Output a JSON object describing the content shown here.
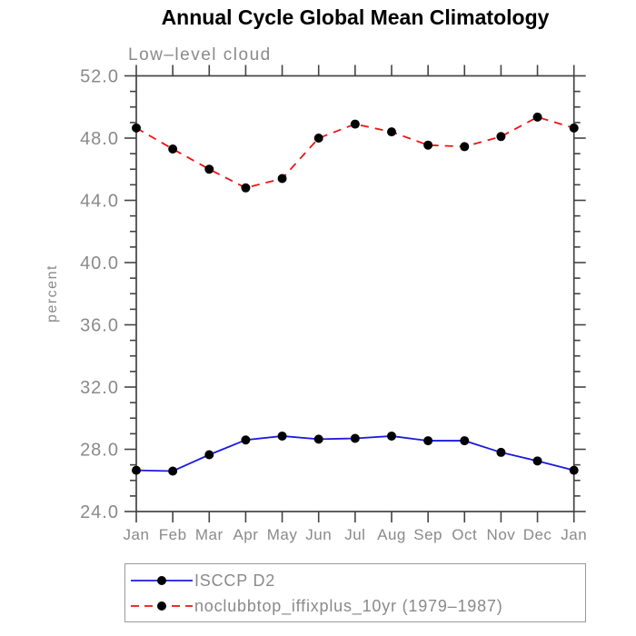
{
  "title": "Annual Cycle Global Mean Climatology",
  "subtitle": "Low–level cloud",
  "chart_data": {
    "type": "line",
    "title": "Annual Cycle Global Mean Climatology",
    "subtitle": "Low–level cloud",
    "ylabel": "percent",
    "xlabel": "",
    "ylim": [
      24.0,
      52.0
    ],
    "ytick_major": 4.0,
    "ytick_minor": 1.0,
    "grid": false,
    "legend_position": "bottom",
    "marker": "filled-circle",
    "categories": [
      "Jan",
      "Feb",
      "Mar",
      "Apr",
      "May",
      "Jun",
      "Jul",
      "Aug",
      "Sep",
      "Oct",
      "Nov",
      "Dec",
      "Jan"
    ],
    "series": [
      {
        "name": "ISCCP D2",
        "color": "#1a1ae0",
        "line_style": "solid",
        "values": [
          26.65,
          26.6,
          27.65,
          28.6,
          28.85,
          28.65,
          28.7,
          28.85,
          28.55,
          28.55,
          27.8,
          27.25,
          26.65
        ]
      },
      {
        "name": "noclubbtop_iffixplus_10yr (1979–1987)",
        "color": "#ee1212",
        "line_style": "dashed",
        "values": [
          48.65,
          47.3,
          46.0,
          44.8,
          45.4,
          48.0,
          48.9,
          48.4,
          47.55,
          47.45,
          48.1,
          49.35,
          48.65
        ]
      }
    ]
  },
  "style": {
    "frame_color": "#434343",
    "label_color": "#8a8a8a",
    "marker_color": "#000000",
    "legend_border_color": "#9a9a9a"
  }
}
